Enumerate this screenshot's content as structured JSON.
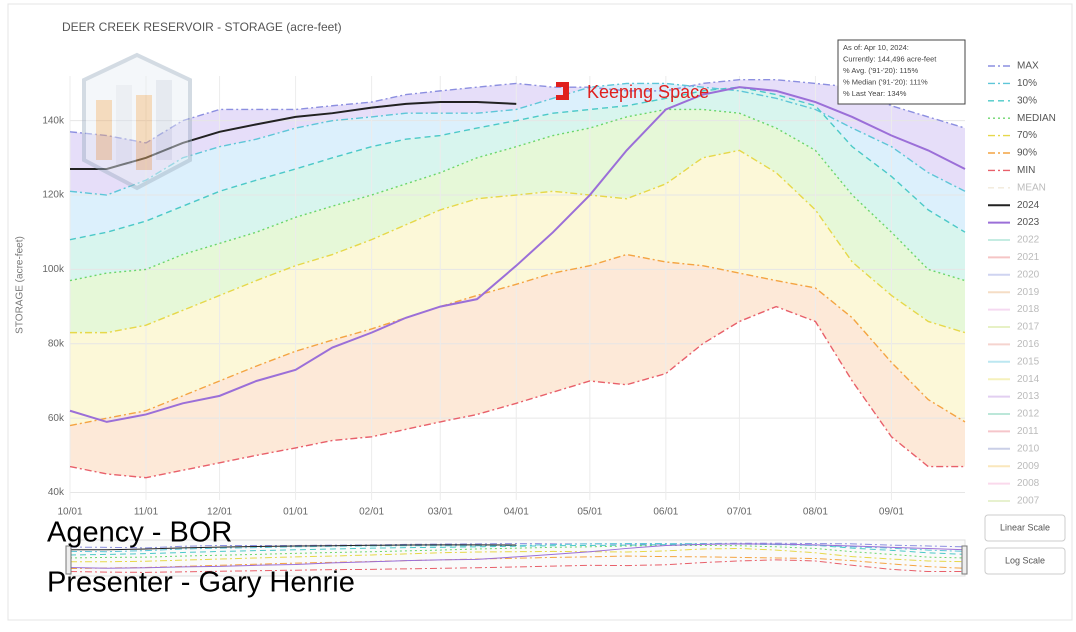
{
  "chart_data": {
    "type": "line",
    "title": "DEER CREEK RESERVOIR - STORAGE (acre-feet)",
    "y_label": "STORAGE (acre-feet)",
    "x": [
      0,
      15,
      31,
      46,
      61,
      76,
      92,
      107,
      123,
      137,
      151,
      166,
      182,
      197,
      212,
      227,
      243,
      258,
      273,
      288,
      304,
      319,
      335,
      350,
      365
    ],
    "xlim": [
      0,
      365
    ],
    "xticks": [
      {
        "value": 0,
        "label": "10/01"
      },
      {
        "value": 31,
        "label": "11/01"
      },
      {
        "value": 61,
        "label": "12/01"
      },
      {
        "value": 92,
        "label": "01/01"
      },
      {
        "value": 123,
        "label": "02/01"
      },
      {
        "value": 151,
        "label": "03/01"
      },
      {
        "value": 182,
        "label": "04/01"
      },
      {
        "value": 212,
        "label": "05/01"
      },
      {
        "value": 243,
        "label": "06/01"
      },
      {
        "value": 273,
        "label": "07/01"
      },
      {
        "value": 304,
        "label": "08/01"
      },
      {
        "value": 335,
        "label": "09/01"
      }
    ],
    "ylim": [
      38000,
      152000
    ],
    "yticks": [
      {
        "value": 40000,
        "label": "40k"
      },
      {
        "value": 60000,
        "label": "60k"
      },
      {
        "value": 80000,
        "label": "80k"
      },
      {
        "value": 100000,
        "label": "100k"
      },
      {
        "value": 120000,
        "label": "120k"
      },
      {
        "value": 140000,
        "label": "140k"
      }
    ],
    "grid": true,
    "series": [
      {
        "name": "MAX",
        "color": "#8c8fe0",
        "dash": "dashdot",
        "fill": "#e6def9",
        "values": [
          137000,
          136000,
          134000,
          140000,
          143000,
          143000,
          143000,
          144000,
          145000,
          147000,
          148000,
          149000,
          150000,
          149000,
          149000,
          148000,
          148000,
          150000,
          151000,
          151000,
          150000,
          149000,
          144000,
          141000,
          138000
        ]
      },
      {
        "name": "10%",
        "color": "#5ec6d8",
        "dash": "dashdot",
        "fill": "#dcf0fc",
        "values": [
          121000,
          120000,
          124000,
          130000,
          133000,
          135000,
          138000,
          140000,
          141000,
          142000,
          142000,
          142000,
          143000,
          146000,
          149000,
          150000,
          150000,
          149000,
          148000,
          146000,
          143000,
          138000,
          133000,
          126000,
          121000
        ]
      },
      {
        "name": "30%",
        "color": "#4cc9c8",
        "dash": "dash",
        "fill": "#d8f5ee",
        "values": [
          108000,
          110000,
          113000,
          117000,
          121000,
          124000,
          127000,
          130000,
          133000,
          135000,
          136000,
          138000,
          140000,
          142000,
          143000,
          144000,
          146000,
          148000,
          149000,
          147000,
          144000,
          133000,
          125000,
          116000,
          110000
        ]
      },
      {
        "name": "MEDIAN",
        "color": "#6cd66c",
        "dash": "dot",
        "fill": "#e6f8d8",
        "values": [
          97000,
          99000,
          100000,
          104000,
          107000,
          110000,
          114000,
          117000,
          120000,
          123000,
          126000,
          130000,
          133000,
          136000,
          138000,
          141000,
          143000,
          143000,
          142000,
          138000,
          132000,
          120000,
          110000,
          100000,
          97000
        ]
      },
      {
        "name": "70%",
        "color": "#e6d84a",
        "dash": "dashdot",
        "fill": "#fcf8d8",
        "values": [
          83000,
          83000,
          85000,
          89000,
          93000,
          97000,
          101000,
          104000,
          108000,
          112000,
          116000,
          119000,
          120000,
          121000,
          120000,
          119000,
          123000,
          130000,
          132000,
          126000,
          116000,
          102000,
          93000,
          86000,
          83000
        ]
      },
      {
        "name": "90%",
        "color": "#f4a442",
        "dash": "dashdot",
        "fill": "#fde9d8",
        "values": [
          58000,
          60000,
          62000,
          66000,
          70000,
          74000,
          78000,
          81000,
          84000,
          87000,
          90000,
          93000,
          96000,
          99000,
          101000,
          104000,
          102000,
          101000,
          99000,
          97000,
          95000,
          87000,
          75000,
          65000,
          59000
        ]
      },
      {
        "name": "MIN",
        "color": "#e8606a",
        "dash": "dashdot",
        "values": [
          47000,
          45000,
          44000,
          46000,
          48000,
          50000,
          52000,
          54000,
          55000,
          57000,
          59000,
          61000,
          64000,
          67000,
          70000,
          69000,
          72000,
          80000,
          86000,
          90000,
          86000,
          70000,
          55000,
          47000,
          47000
        ]
      },
      {
        "name": "MEAN",
        "color": "#e8dcc0",
        "dash": "dash",
        "visible": false
      },
      {
        "name": "2024",
        "color": "#222222",
        "dash": "solid",
        "values": [
          127000,
          127000,
          130000,
          134000,
          137000,
          139000,
          141000,
          142000,
          143500,
          144500,
          145000,
          145000,
          144500,
          null,
          null,
          null,
          null,
          null,
          null,
          null,
          null,
          null,
          null,
          null,
          null
        ]
      },
      {
        "name": "2023",
        "color": "#9b6fd8",
        "dash": "solid",
        "values": [
          62000,
          59000,
          61000,
          64000,
          66000,
          70000,
          73000,
          79000,
          83000,
          87000,
          90000,
          92000,
          101000,
          110000,
          120000,
          132000,
          143000,
          147000,
          149000,
          148000,
          145000,
          141000,
          136000,
          132000,
          127000
        ]
      },
      {
        "name": "2022",
        "color": "#9fe0cf",
        "dash": "solid",
        "visible": false
      },
      {
        "name": "2021",
        "color": "#f0a0a0",
        "dash": "solid",
        "visible": false
      },
      {
        "name": "2020",
        "color": "#b0b8e8",
        "dash": "solid",
        "visible": false
      },
      {
        "name": "2019",
        "color": "#f0c8a0",
        "dash": "solid",
        "visible": false
      },
      {
        "name": "2018",
        "color": "#f0c0e8",
        "dash": "solid",
        "visible": false
      },
      {
        "name": "2017",
        "color": "#d8e8a0",
        "dash": "solid",
        "visible": false
      },
      {
        "name": "2016",
        "color": "#f0b8b0",
        "dash": "solid",
        "visible": false
      },
      {
        "name": "2015",
        "color": "#90d8e8",
        "dash": "solid",
        "visible": false
      },
      {
        "name": "2014",
        "color": "#f0e890",
        "dash": "solid",
        "visible": false
      },
      {
        "name": "2013",
        "color": "#d0b0e8",
        "dash": "solid",
        "visible": false
      },
      {
        "name": "2012",
        "color": "#90d8c0",
        "dash": "solid",
        "visible": false
      },
      {
        "name": "2011",
        "color": "#f0a0a8",
        "dash": "solid",
        "visible": false
      },
      {
        "name": "2010",
        "color": "#a8b0d8",
        "dash": "solid",
        "visible": false
      },
      {
        "name": "2009",
        "color": "#f8d890",
        "dash": "solid",
        "visible": false
      },
      {
        "name": "2008",
        "color": "#f8c0e0",
        "dash": "solid",
        "visible": false
      },
      {
        "name": "2007",
        "color": "#d8e8b0",
        "dash": "solid",
        "visible": false
      }
    ],
    "legend": "right",
    "hover_box": [
      "As of: Apr 10, 2024:",
      "Currently: 144,496 acre-feet",
      "% Avg. ('91-'20): 115%",
      "% Median ('91-'20): 111%",
      "% Last Year: 134%"
    ],
    "callout": "Keeping Space",
    "callout_color": "#e0201e",
    "buttons": [
      "Linear Scale",
      "Log Scale"
    ]
  },
  "overlay": {
    "agency": "Agency - BOR",
    "presenter": "Presenter - Gary Henrie"
  }
}
